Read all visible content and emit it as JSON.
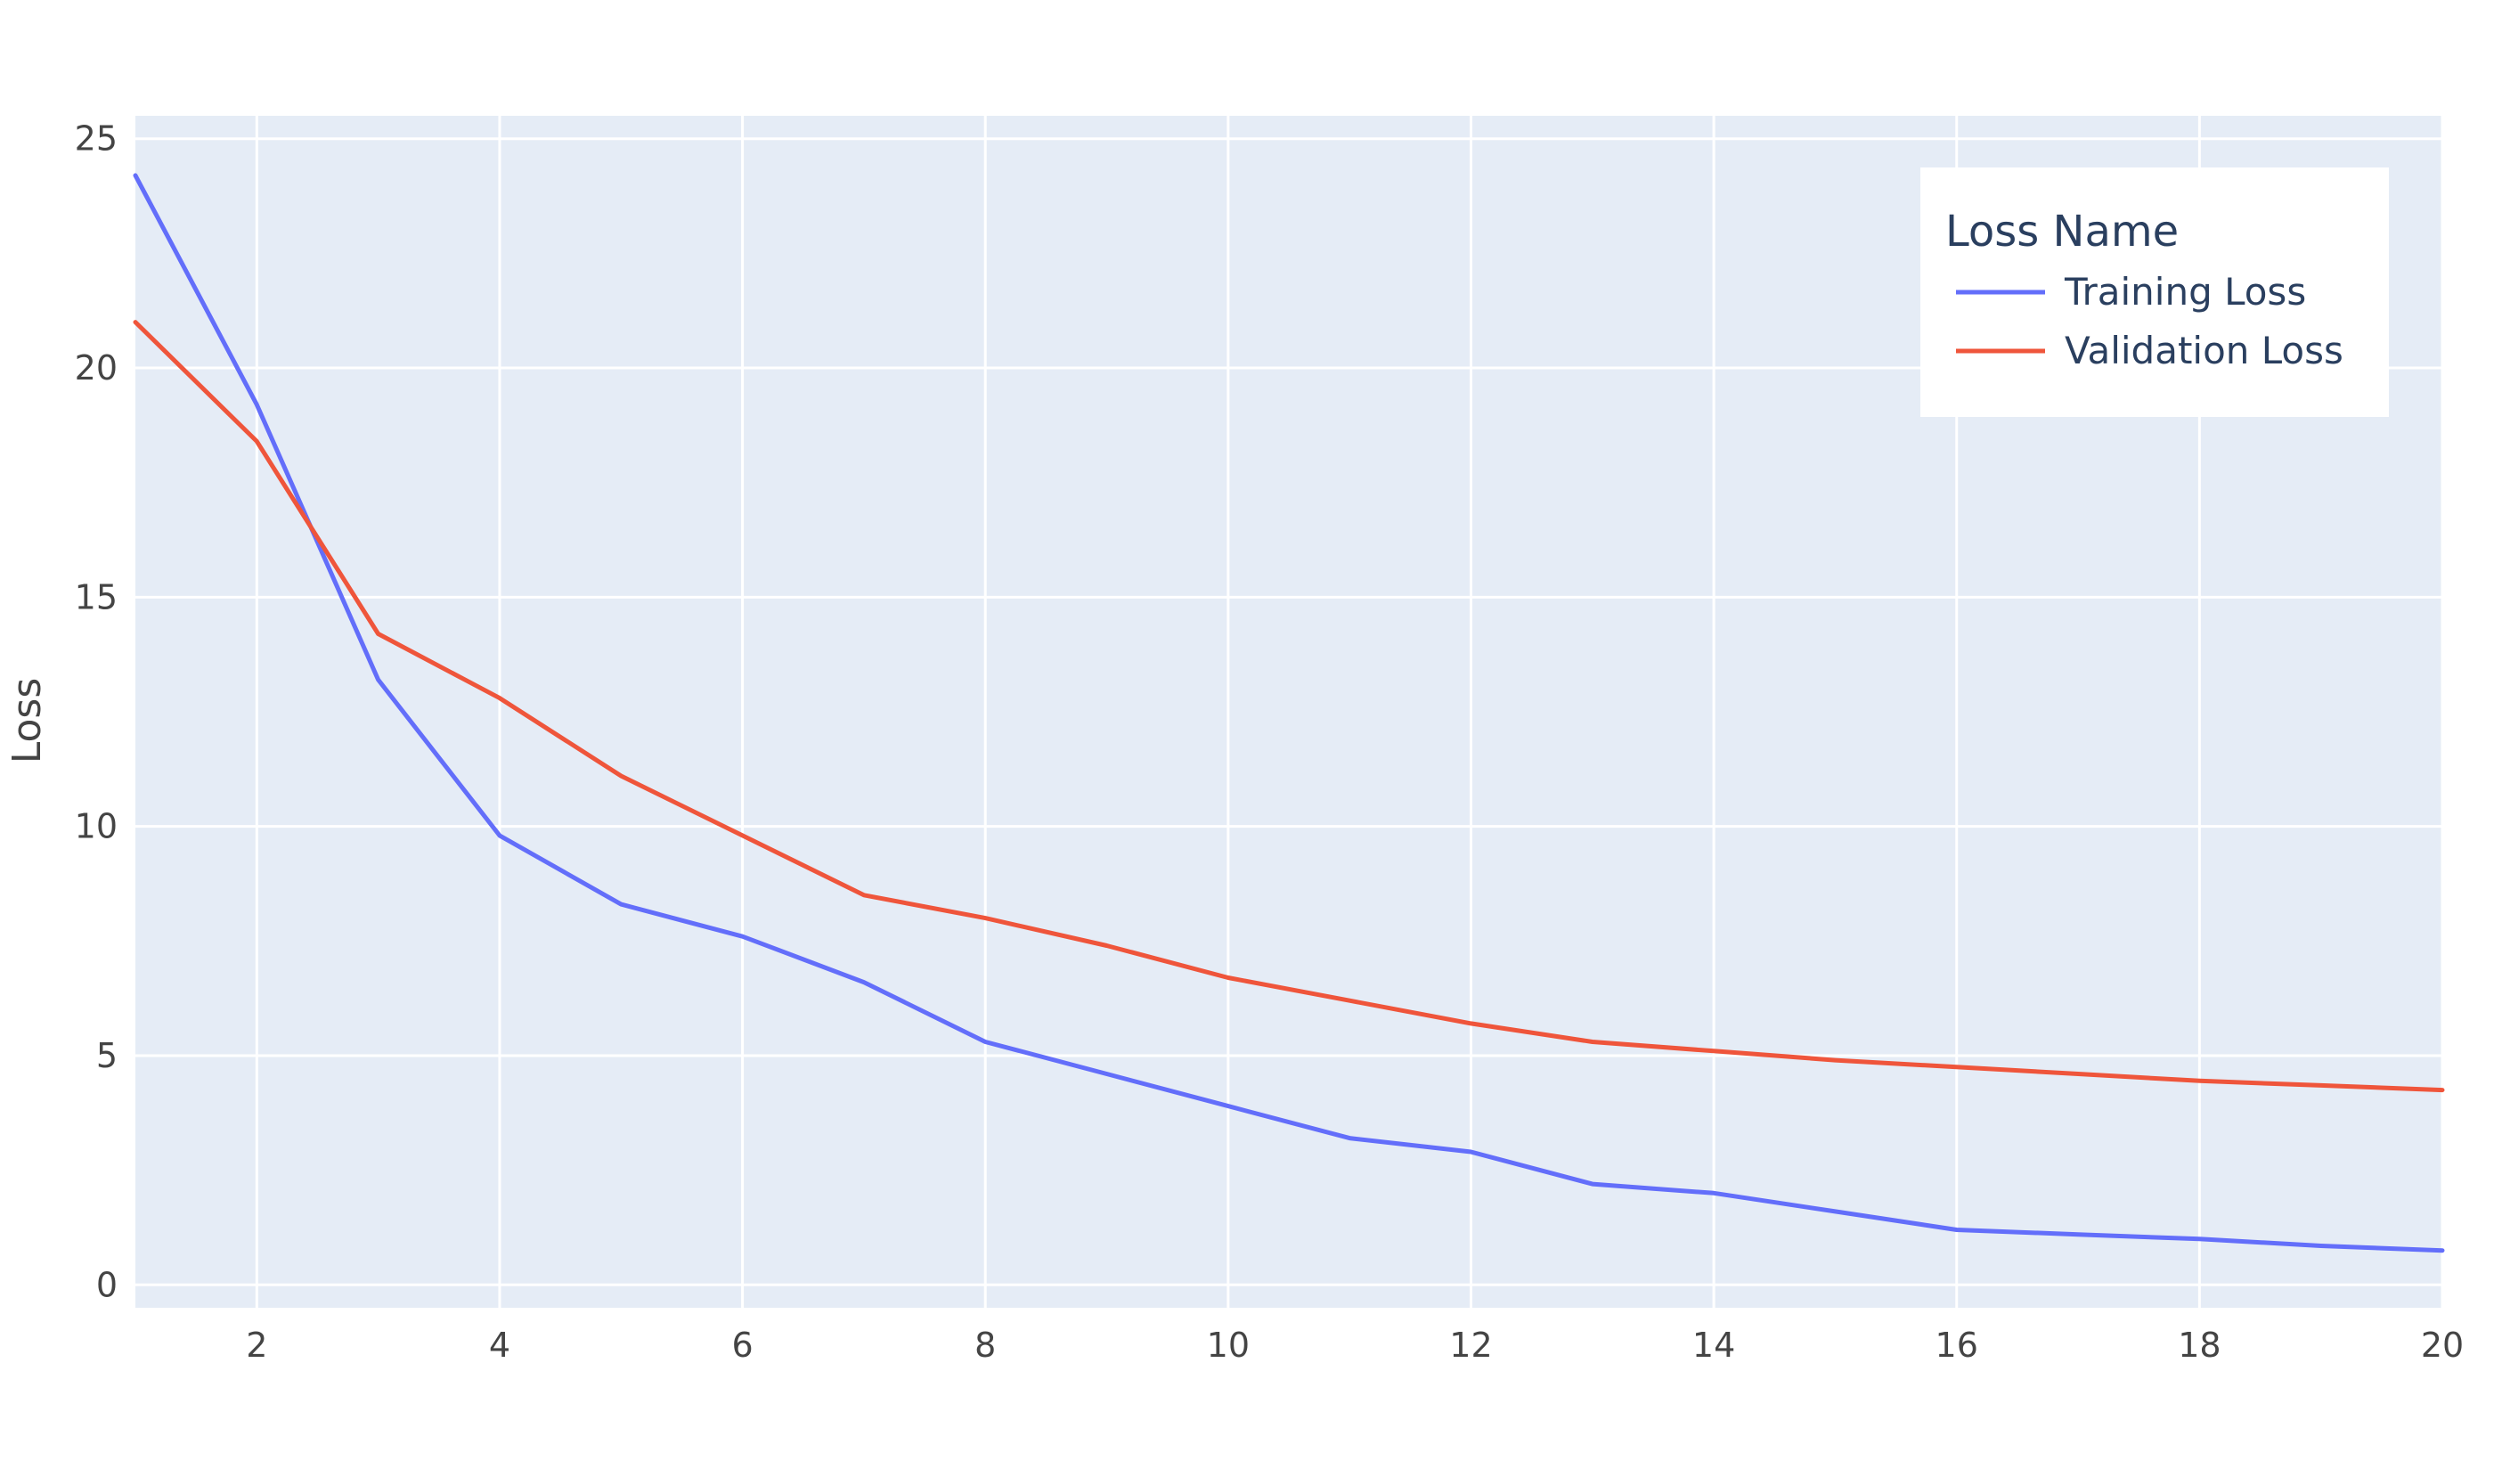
{
  "chart_data": {
    "type": "line",
    "xlabel": "",
    "ylabel": "Loss",
    "xlim": [
      1,
      20
    ],
    "ylim": [
      -0.5,
      25.5
    ],
    "xticks": [
      2,
      4,
      6,
      8,
      10,
      12,
      14,
      16,
      18,
      20
    ],
    "yticks": [
      0,
      5,
      10,
      15,
      20,
      25
    ],
    "grid": true,
    "plot_background": "#e5ecf6",
    "grid_color": "#ffffff",
    "legend": {
      "title": "Loss Name",
      "position": "top-right"
    },
    "x": [
      1,
      2,
      3,
      4,
      5,
      6,
      7,
      8,
      9,
      10,
      11,
      12,
      13,
      14,
      15,
      16,
      17,
      18,
      19,
      20
    ],
    "series": [
      {
        "name": "Training Loss",
        "color": "#636efa",
        "values": [
          24.2,
          19.2,
          13.2,
          9.8,
          8.3,
          7.6,
          6.6,
          5.3,
          4.6,
          3.9,
          3.2,
          2.9,
          2.2,
          2.0,
          1.6,
          1.2,
          1.1,
          1.0,
          0.85,
          0.75
        ]
      },
      {
        "name": "Validation Loss",
        "color": "#ef553b",
        "values": [
          21.0,
          18.4,
          14.2,
          12.8,
          11.1,
          9.8,
          8.5,
          8.0,
          7.4,
          6.7,
          6.2,
          5.7,
          5.3,
          5.1,
          4.9,
          4.75,
          4.6,
          4.45,
          4.35,
          4.25
        ]
      }
    ]
  }
}
